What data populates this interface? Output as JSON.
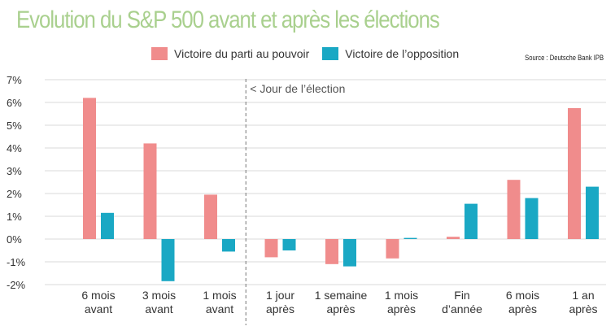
{
  "chart_data": {
    "type": "bar",
    "title": "Evolution du S&P 500 avant et après les élections",
    "source": "Source : Deutsche Bank IPB",
    "annotation": "< Jour de l’élection",
    "categories": [
      [
        "6 mois",
        "avant"
      ],
      [
        "3 mois",
        "avant"
      ],
      [
        "1 mois",
        "avant"
      ],
      [
        "1 jour",
        "après"
      ],
      [
        "1 semaine",
        "après"
      ],
      [
        "1 mois",
        "après"
      ],
      [
        "Fin",
        "d’année"
      ],
      [
        "6 mois",
        "après"
      ],
      [
        "1 an",
        "après"
      ]
    ],
    "series": [
      {
        "name": "Victoire du parti au pouvoir",
        "color": "#f08c8c",
        "values": [
          6.2,
          4.2,
          1.95,
          -0.8,
          -1.1,
          -0.85,
          0.1,
          2.6,
          5.75
        ]
      },
      {
        "name": "Victoire de l’opposition",
        "color": "#1aa8c4",
        "values": [
          1.15,
          -1.85,
          -0.55,
          -0.5,
          -1.2,
          0.05,
          1.55,
          1.8,
          2.3
        ]
      }
    ],
    "yticks": [
      "7%",
      "6%",
      "5%",
      "4%",
      "3%",
      "2%",
      "1%",
      "0%",
      "-1%",
      "-2%"
    ],
    "ylim": [
      -2,
      7
    ],
    "grid": true,
    "election_marker_after_category": 2,
    "title_color": "#a9d08e",
    "axis_text_color": "#333333",
    "grid_color": "#d9d9d9"
  }
}
